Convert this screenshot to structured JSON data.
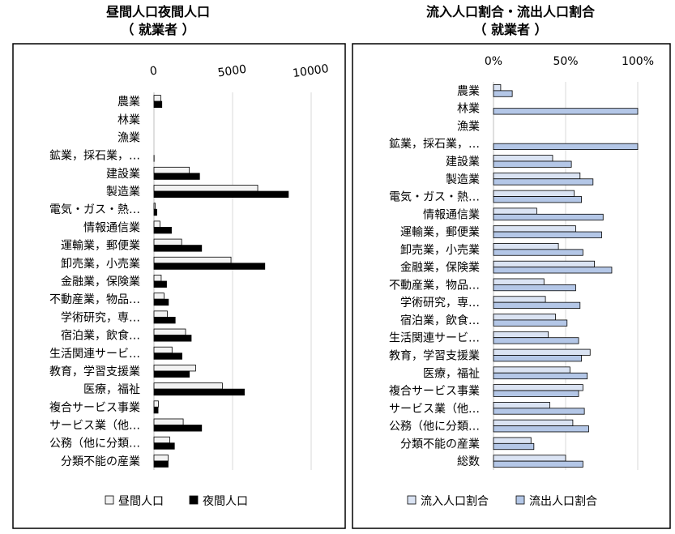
{
  "chart_data": [
    {
      "type": "bar",
      "orientation": "horizontal",
      "title": "昼間人口夜間人口",
      "subtitle": "（ 就業者 ）",
      "categories": [
        "農業",
        "林業",
        "漁業",
        "鉱業，採石業，…",
        "建設業",
        "製造業",
        "電気・ガス・熱…",
        "情報通信業",
        "運輸業，郵便業",
        "卸売業，小売業",
        "金融業，保険業",
        "不動産業，物品…",
        "学術研究，専…",
        "宿泊業，飲食…",
        "生活関連サービ…",
        "教育，学習支援業",
        "医療，福祉",
        "複合サービス事業",
        "サービス業（他…",
        "公務（他に分類…",
        "分類不能の産業"
      ],
      "series": [
        {
          "name": "昼間人口",
          "color": "#f2f2f2",
          "values": [
            430,
            0,
            0,
            0,
            2250,
            6600,
            80,
            380,
            1760,
            4900,
            460,
            640,
            850,
            2010,
            1150,
            2650,
            4350,
            280,
            1860,
            1000,
            900
          ]
        },
        {
          "name": "夜間人口",
          "color": "#000000",
          "values": [
            500,
            0,
            0,
            10,
            2900,
            8550,
            180,
            1110,
            3030,
            7050,
            800,
            920,
            1350,
            2370,
            1780,
            2250,
            5750,
            260,
            3030,
            1300,
            900
          ]
        }
      ],
      "xlim": [
        0,
        10000
      ],
      "xticks": [
        "0",
        "5000",
        "10000"
      ],
      "legend": "bottom",
      "grid": true
    },
    {
      "type": "bar",
      "orientation": "horizontal",
      "title": "流入人口割合・流出人口割合",
      "subtitle": "（ 就業者 ）",
      "categories": [
        "農業",
        "林業",
        "漁業",
        "鉱業，採石業，…",
        "建設業",
        "製造業",
        "電気・ガス・熱…",
        "情報通信業",
        "運輸業，郵便業",
        "卸売業，小売業",
        "金融業，保険業",
        "不動産業，物品…",
        "学術研究，専…",
        "宿泊業，飲食…",
        "生活関連サービ…",
        "教育，学習支援業",
        "医療，福祉",
        "複合サービス事業",
        "サービス業（他…",
        "公務（他に分類…",
        "分類不能の産業",
        "総数"
      ],
      "series": [
        {
          "name": "流入人口割合",
          "color": "#dae3f3",
          "values": [
            5,
            0,
            0,
            0,
            41,
            60,
            56,
            30,
            57,
            45,
            70,
            35,
            36,
            43,
            38,
            67,
            53,
            62,
            39,
            55,
            26,
            50
          ]
        },
        {
          "name": "流出人口割合",
          "color": "#b4c7e7",
          "values": [
            13,
            100,
            0,
            100,
            54,
            69,
            61,
            76,
            75,
            62,
            82,
            57,
            60,
            51,
            59,
            61,
            65,
            59,
            63,
            66,
            28,
            62
          ]
        }
      ],
      "xlim": [
        0,
        100
      ],
      "xticks": [
        "0%",
        "50%",
        "100%"
      ],
      "legend": "bottom",
      "grid": true
    }
  ]
}
